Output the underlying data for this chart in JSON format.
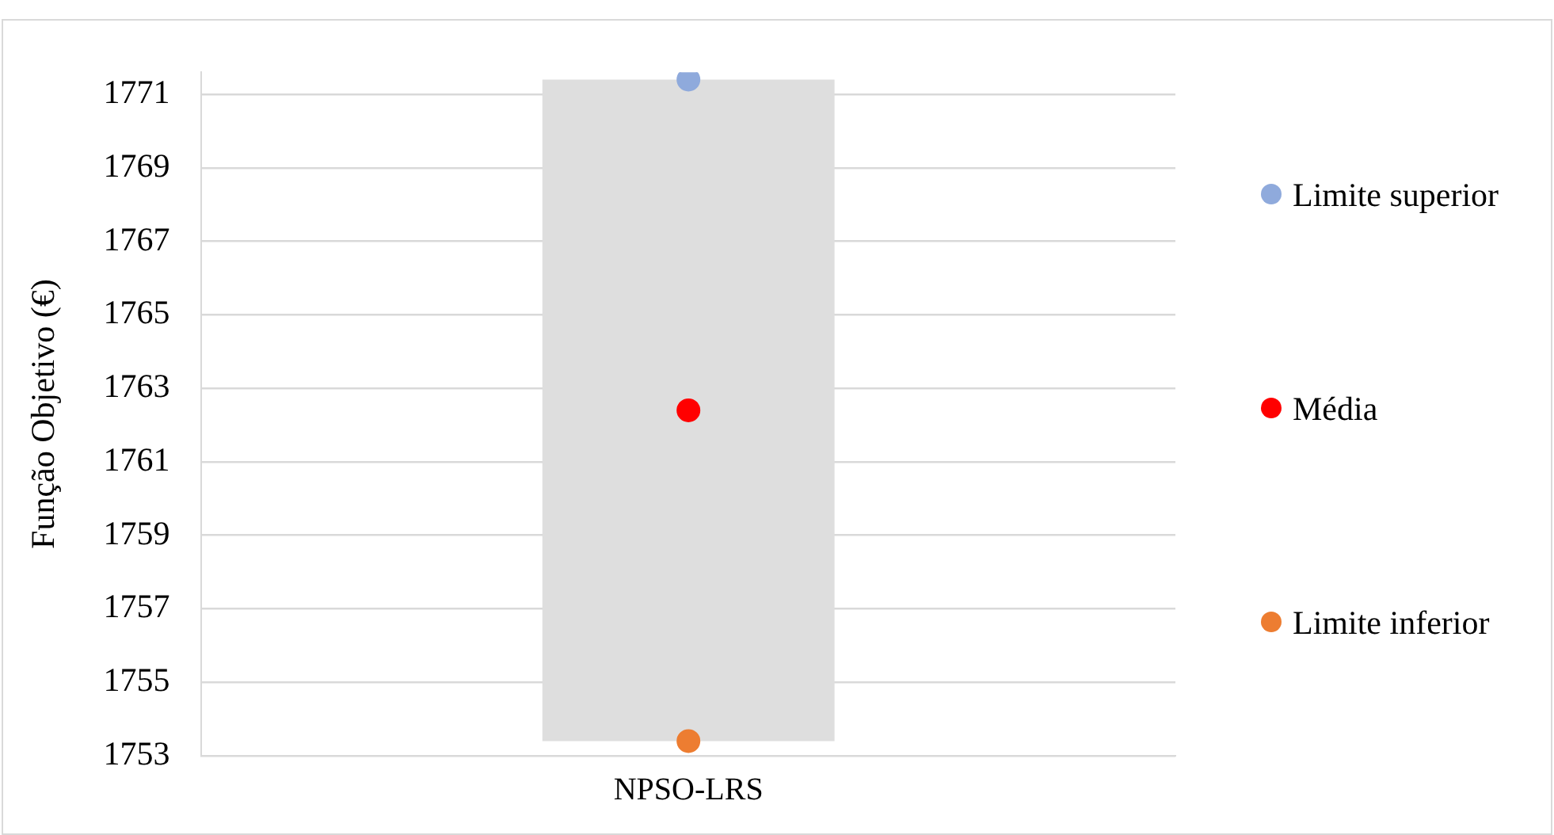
{
  "chart_data": {
    "type": "bar",
    "ylabel": "Função Objetivo (€)",
    "categories": [
      "NPSO-LRS"
    ],
    "series": [
      {
        "type": "bar",
        "color": "#dedede",
        "values": [
          18.0
        ],
        "base": [
          1753.4
        ]
      },
      {
        "type": "scatter",
        "name": "Limite superior",
        "color": "#8faadc",
        "x": [
          "NPSO-LRS"
        ],
        "values": [
          1771.4
        ]
      },
      {
        "type": "scatter",
        "name": "Média",
        "color": "#ff0000",
        "x": [
          "NPSO-LRS"
        ],
        "values": [
          1762.4
        ]
      },
      {
        "type": "scatter",
        "name": "Limite inferior",
        "color": "#ed7d31",
        "x": [
          "NPSO-LRS"
        ],
        "values": [
          1753.4
        ]
      }
    ],
    "ylim": [
      1753,
      1771.6
    ],
    "yticks": [
      1753,
      1755,
      1757,
      1759,
      1761,
      1763,
      1765,
      1767,
      1769,
      1771
    ],
    "grid": "y",
    "legend": "right",
    "marker": "circle"
  }
}
